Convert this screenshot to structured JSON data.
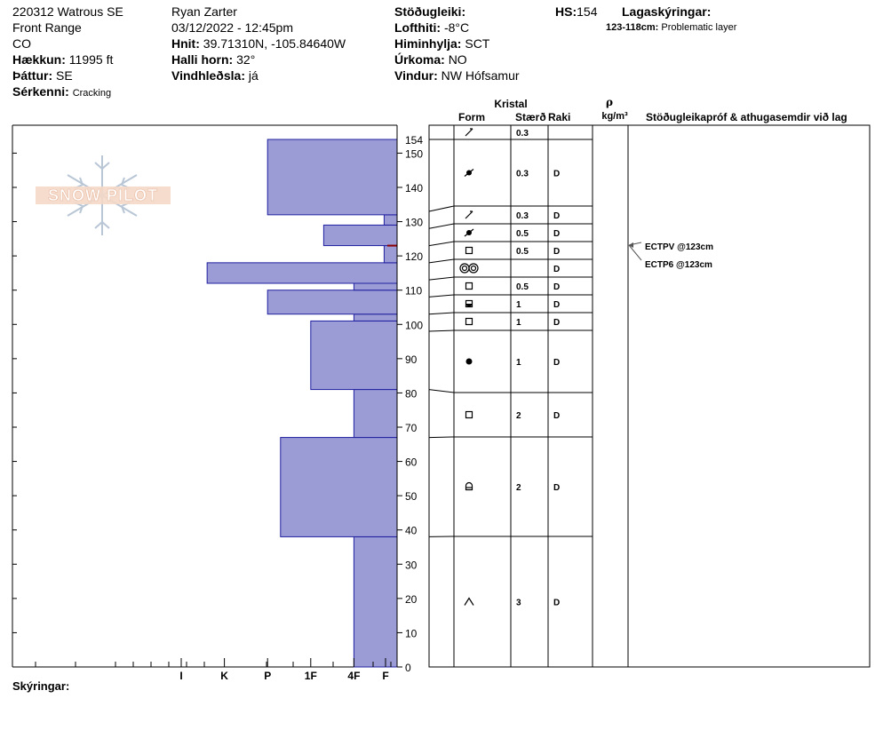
{
  "header": {
    "col1": {
      "site": "220312 Watrous SE",
      "range": "Front Range",
      "state": "CO",
      "elevation_label": "Hækkun:",
      "elevation_value": "11995 ft",
      "aspect_label": "Þáttur:",
      "aspect_value": "SE",
      "features_label": "Sérkenni:",
      "features_value": "Cracking"
    },
    "col2": {
      "observer": "Ryan Zarter",
      "datetime": "03/12/2022 - 12:45pm",
      "coords_label": "Hnit:",
      "coords_value": "39.71310N, -105.84640W",
      "slope_label": "Halli horn:",
      "slope_value": "32°",
      "wind_loading_label": "Vindhleðsla:",
      "wind_loading_value": "já"
    },
    "col3": {
      "stability_label": "Stöðugleiki:",
      "stability_value": "",
      "airtemp_label": "Lofthiti:",
      "airtemp_value": "-8°C",
      "sky_label": "Himinhylja:",
      "sky_value": "SCT",
      "precip_label": "Úrkoma:",
      "precip_value": "NO",
      "wind_label": "Vindur:",
      "wind_value": "NW Hófsamur"
    },
    "hs_label": "HS:",
    "hs_value": "154",
    "legend_title": "Lagaskýringar:",
    "legend_range": "123-118cm:",
    "legend_text": "Problematic layer"
  },
  "logo_text": "SNOW PILOT",
  "footer_label": "Skýringar:",
  "columns": {
    "crystal": "Kristal",
    "form": "Form",
    "size": "Stærð",
    "moisture": "Raki",
    "rho": "ρ",
    "density_unit": "kg/m³",
    "comments": "Stöðugleikapróf & athugasemdir við lag"
  },
  "colors": {
    "bar_fill": "#9b9bd6",
    "bar_stroke": "#2020a0",
    "marker": "#8b0000"
  },
  "chart_data": {
    "type": "bar",
    "orientation": "horizontal",
    "y_axis_label": "",
    "ylim": [
      0,
      154
    ],
    "y_ticks": [
      0,
      10,
      20,
      30,
      40,
      50,
      60,
      70,
      80,
      90,
      100,
      110,
      120,
      130,
      140,
      150,
      154
    ],
    "hardness_scale": [
      "I",
      "K",
      "P",
      "1F",
      "4F",
      "F"
    ],
    "hardness_scale_values": [
      5,
      4,
      3,
      2,
      1,
      0
    ],
    "hardness_profile": [
      {
        "bottom": 0,
        "top": 38,
        "hardness": 1
      },
      {
        "bottom": 38,
        "top": 67,
        "hardness": 2.7
      },
      {
        "bottom": 67,
        "top": 81,
        "hardness": 1
      },
      {
        "bottom": 81,
        "top": 101,
        "hardness": 2
      },
      {
        "bottom": 101,
        "top": 103,
        "hardness": 1
      },
      {
        "bottom": 103,
        "top": 110,
        "hardness": 3
      },
      {
        "bottom": 110,
        "top": 112,
        "hardness": 1
      },
      {
        "bottom": 112,
        "top": 118,
        "hardness": 4.4
      },
      {
        "bottom": 118,
        "top": 123,
        "hardness": 0.3
      },
      {
        "bottom": 123,
        "top": 129,
        "hardness": 1.7
      },
      {
        "bottom": 129,
        "top": 132,
        "hardness": 0.3
      },
      {
        "bottom": 132,
        "top": 154,
        "hardness": 3
      }
    ],
    "problem_layer_marker_cm": 123,
    "layers": [
      {
        "top": 154,
        "bottom": 154,
        "form": "decomposing",
        "size": "0.3",
        "moisture": ""
      },
      {
        "top": 154,
        "bottom": 133,
        "form": "rounded-mixed",
        "size": "0.3",
        "moisture": "D"
      },
      {
        "top": 133,
        "bottom": 128,
        "form": "decomposing",
        "size": "0.3",
        "moisture": "D"
      },
      {
        "top": 128,
        "bottom": 123,
        "form": "rounded-mixed",
        "size": "0.5",
        "moisture": "D"
      },
      {
        "top": 123,
        "bottom": 118,
        "form": "faceted",
        "size": "0.5",
        "moisture": "D"
      },
      {
        "top": 118,
        "bottom": 113,
        "form": "melt-forms",
        "size": "",
        "moisture": "D"
      },
      {
        "top": 113,
        "bottom": 108,
        "form": "faceted",
        "size": "0.5",
        "moisture": "D"
      },
      {
        "top": 108,
        "bottom": 103,
        "form": "rounded-faceted",
        "size": "1",
        "moisture": "D"
      },
      {
        "top": 103,
        "bottom": 98,
        "form": "faceted",
        "size": "1",
        "moisture": "D"
      },
      {
        "top": 98,
        "bottom": 81,
        "form": "rounded",
        "size": "1",
        "moisture": "D"
      },
      {
        "top": 81,
        "bottom": 67,
        "form": "faceted",
        "size": "2",
        "moisture": "D"
      },
      {
        "top": 67,
        "bottom": 38,
        "form": "faceted-rounded",
        "size": "2",
        "moisture": "D"
      },
      {
        "top": 38,
        "bottom": 0,
        "form": "depth-hoar",
        "size": "3",
        "moisture": "D"
      }
    ],
    "tests": [
      {
        "text": "ECTPV @123cm"
      },
      {
        "text": "ECTP6 @123cm"
      }
    ]
  }
}
